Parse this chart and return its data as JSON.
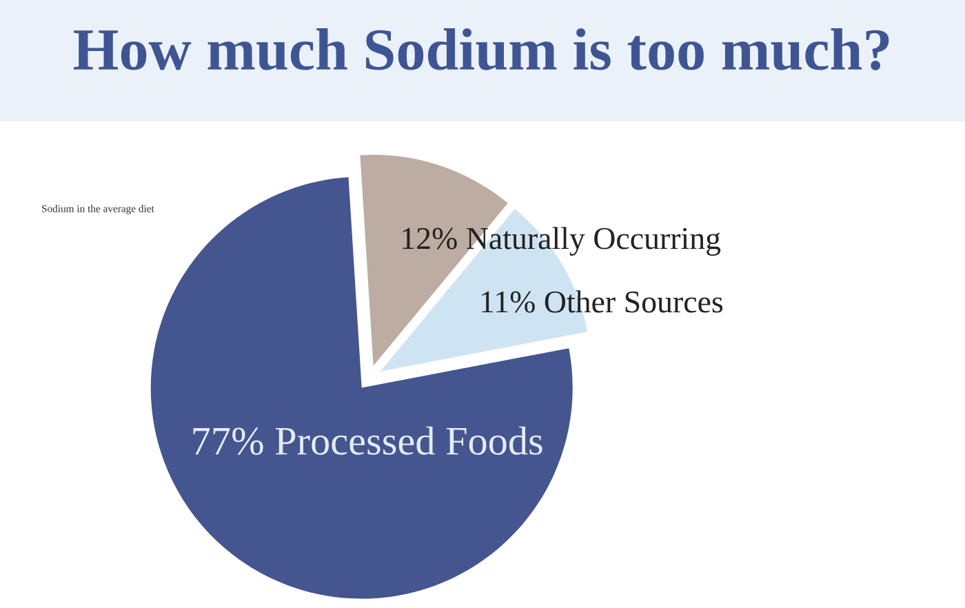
{
  "chart_data": {
    "type": "pie",
    "title": "How much Sodium is too much?",
    "subtitle": "Sodium in the average diet",
    "categories": [
      "Naturally Occurring",
      "Other Sources",
      "Processed Foods"
    ],
    "values": [
      12,
      11,
      77
    ],
    "value_labels": [
      "12%",
      "11%",
      "77%"
    ],
    "colors": [
      "#bcaca2",
      "#cfe4f3",
      "#45558f"
    ]
  }
}
